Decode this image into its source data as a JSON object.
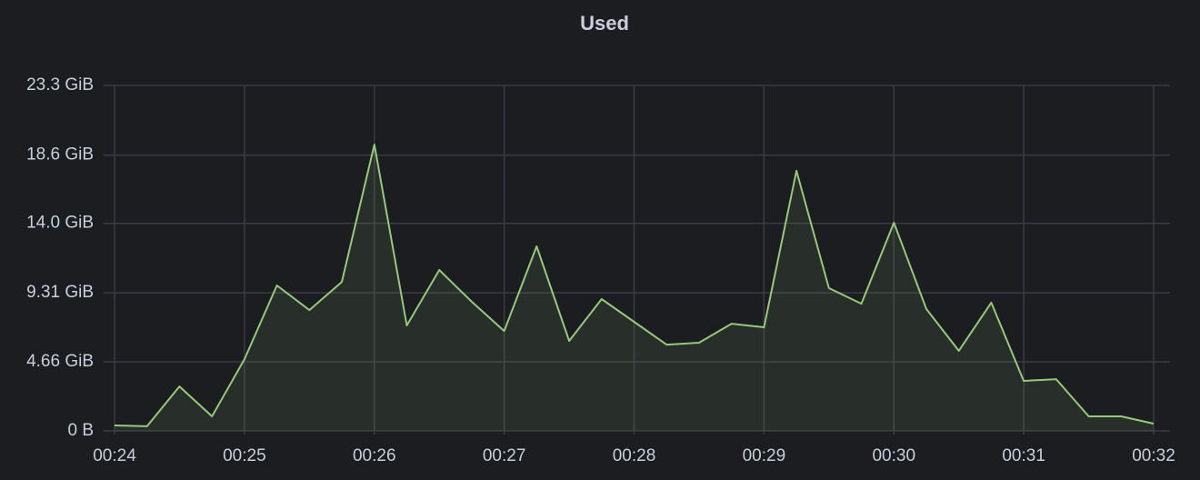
{
  "chart_data": {
    "type": "area",
    "title": "Used",
    "categories": [
      "00:24",
      null,
      null,
      null,
      "00:25",
      null,
      null,
      null,
      "00:26",
      null,
      null,
      null,
      "00:27",
      null,
      null,
      null,
      "00:28",
      null,
      null,
      null,
      "00:29",
      null,
      null,
      null,
      "00:30",
      null,
      null,
      null,
      "00:31",
      null,
      null,
      null,
      "00:32"
    ],
    "values": [
      0.37,
      0.31,
      3.0,
      0.98,
      4.84,
      9.81,
      8.15,
      10.05,
      19.31,
      7.11,
      10.85,
      8.71,
      6.74,
      12.45,
      6.07,
      8.89,
      7.36,
      5.82,
      5.95,
      7.23,
      6.99,
      17.54,
      9.63,
      8.58,
      14.04,
      8.22,
      5.4,
      8.65,
      3.37,
      3.49,
      0.98,
      0.98,
      0.49
    ],
    "color": "#96c97b",
    "ylim": [
      0,
      23.3
    ],
    "yticks": [
      {
        "value": 0,
        "label": "0 B"
      },
      {
        "value": 4.66,
        "label": "4.66 GiB"
      },
      {
        "value": 9.31,
        "label": "9.31 GiB"
      },
      {
        "value": 14.0,
        "label": "14.0 GiB"
      },
      {
        "value": 18.6,
        "label": "18.6 GiB"
      },
      {
        "value": 23.3,
        "label": "23.3 GiB"
      }
    ],
    "grid": true
  }
}
